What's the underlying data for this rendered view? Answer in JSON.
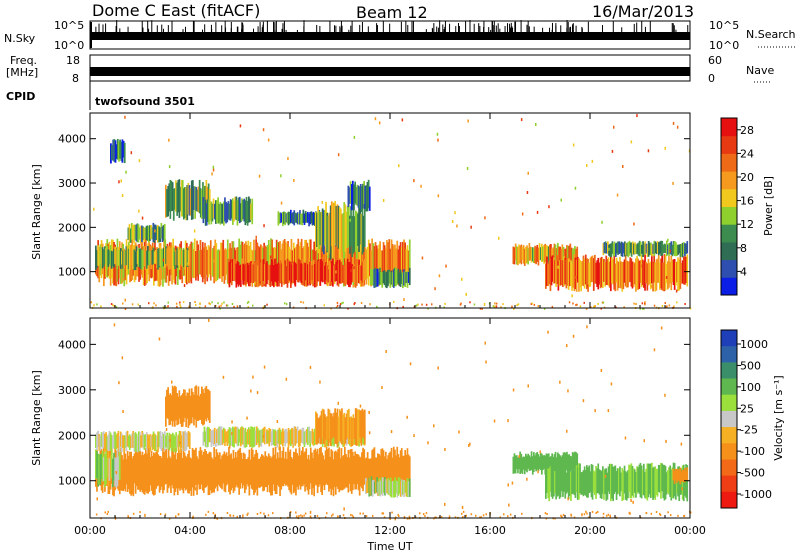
{
  "header": {
    "title": "Dome C East (fitACF)",
    "beam": "Beam 12",
    "date": "16/Mar/2013"
  },
  "strips": {
    "nsky_label": "N.Sky",
    "nsky_ticks": [
      "10^5",
      "10^0"
    ],
    "nsearch_label": "N.Search",
    "nsearch_ticks": [
      "10^5",
      "10^0"
    ],
    "freq_label_1": "Freq.",
    "freq_label_2": "[MHz]",
    "freq_ticks": [
      "18",
      "8"
    ],
    "nave_label": "Nave",
    "nave_ticks": [
      "60",
      "0"
    ],
    "cpid_label": "CPID",
    "cpid_value": "twofsound 3501"
  },
  "colors": {
    "power_scale": [
      "#0a1ee6",
      "#2e4fb0",
      "#2f6e55",
      "#3d8c4f",
      "#8fcf2e",
      "#f0c81e",
      "#f59a1e",
      "#ee6a16",
      "#e83a12",
      "#e61010"
    ],
    "velocity_scale": [
      "#ee1a12",
      "#ef3d16",
      "#f26a18",
      "#f5901a",
      "#f6b023",
      "#c8c8c8",
      "#9adf3c",
      "#5fb84f",
      "#3a8f6a",
      "#2d62a8",
      "#1f3fb8"
    ]
  },
  "chart_data": [
    {
      "type": "heatmap",
      "panel": "power",
      "ylabel": "Slant Range [km]",
      "xlabel": "",
      "x_ticks": [
        "00:00",
        "04:00",
        "08:00",
        "12:00",
        "16:00",
        "20:00",
        "00:00"
      ],
      "x_tick_hours": [
        0,
        4,
        8,
        12,
        16,
        20,
        24
      ],
      "y_ticks": [
        1000,
        2000,
        3000,
        4000
      ],
      "ylim": [
        180,
        4580
      ],
      "xlim_hours": [
        0,
        24
      ],
      "colorbar_label": "Power [dB]",
      "colorbar_ticks": [
        4,
        8,
        12,
        16,
        20,
        24,
        28
      ],
      "colorbar_range": [
        0,
        30
      ],
      "regions": [
        {
          "t0": 0.2,
          "t1": 12.8,
          "r0": 600,
          "r1": 1750,
          "value": 20
        },
        {
          "t0": 0.2,
          "t1": 4.0,
          "r0": 1000,
          "r1": 1600,
          "value": 14
        },
        {
          "t0": 1.5,
          "t1": 3.0,
          "r0": 1600,
          "r1": 2100,
          "value": 10
        },
        {
          "t0": 3.0,
          "t1": 4.8,
          "r0": 2100,
          "r1": 3100,
          "value": 12
        },
        {
          "t0": 0.8,
          "t1": 1.4,
          "r0": 3400,
          "r1": 4000,
          "value": 6
        },
        {
          "t0": 4.5,
          "t1": 6.5,
          "r0": 2000,
          "r1": 2700,
          "value": 10
        },
        {
          "t0": 7.5,
          "t1": 9.5,
          "r0": 2000,
          "r1": 2400,
          "value": 8
        },
        {
          "t0": 5.5,
          "t1": 11.0,
          "r0": 600,
          "r1": 1300,
          "value": 26
        },
        {
          "t0": 9.0,
          "t1": 11.0,
          "r0": 1200,
          "r1": 2600,
          "value": 12
        },
        {
          "t0": 10.3,
          "t1": 11.2,
          "r0": 2300,
          "r1": 3100,
          "value": 6
        },
        {
          "t0": 11.2,
          "t1": 12.8,
          "r0": 600,
          "r1": 1100,
          "value": 8
        },
        {
          "t0": 16.9,
          "t1": 19.5,
          "r0": 1100,
          "r1": 1650,
          "value": 18
        },
        {
          "t0": 18.2,
          "t1": 23.9,
          "r0": 500,
          "r1": 1400,
          "value": 22
        },
        {
          "t0": 20.5,
          "t1": 23.9,
          "r0": 1300,
          "r1": 1700,
          "value": 10
        }
      ]
    },
    {
      "type": "heatmap",
      "panel": "velocity",
      "ylabel": "Slant Range [km]",
      "xlabel": "Time UT",
      "x_ticks": [
        "00:00",
        "04:00",
        "08:00",
        "12:00",
        "16:00",
        "20:00",
        "00:00"
      ],
      "x_tick_hours": [
        0,
        4,
        8,
        12,
        16,
        20,
        24
      ],
      "y_ticks": [
        1000,
        2000,
        3000,
        4000
      ],
      "ylim": [
        180,
        4580
      ],
      "xlim_hours": [
        0,
        24
      ],
      "colorbar_label": "Velocity [m s⁻¹]",
      "colorbar_ticks": [
        "1000",
        "500",
        "100",
        "25",
        "-25",
        "-100",
        "-500",
        "-1000"
      ],
      "regions": [
        {
          "t0": 0.2,
          "t1": 12.8,
          "r0": 600,
          "r1": 1750,
          "value": -300
        },
        {
          "t0": 0.2,
          "t1": 1.2,
          "r0": 800,
          "r1": 1700,
          "value": 60
        },
        {
          "t0": 0.2,
          "t1": 4.0,
          "r0": 1600,
          "r1": 2100,
          "value": 0
        },
        {
          "t0": 3.0,
          "t1": 4.8,
          "r0": 2100,
          "r1": 3100,
          "value": -300
        },
        {
          "t0": 4.5,
          "t1": 11.0,
          "r0": 1700,
          "r1": 2200,
          "value": 0
        },
        {
          "t0": 9.0,
          "t1": 11.0,
          "r0": 1700,
          "r1": 2600,
          "value": -150
        },
        {
          "t0": 11.0,
          "t1": 12.8,
          "r0": 600,
          "r1": 1100,
          "value": 60
        },
        {
          "t0": 16.9,
          "t1": 19.5,
          "r0": 1100,
          "r1": 1650,
          "value": 400
        },
        {
          "t0": 18.2,
          "t1": 23.9,
          "r0": 500,
          "r1": 1400,
          "value": 150
        },
        {
          "t0": 23.3,
          "t1": 23.9,
          "r0": 900,
          "r1": 1300,
          "value": -200
        }
      ]
    }
  ]
}
